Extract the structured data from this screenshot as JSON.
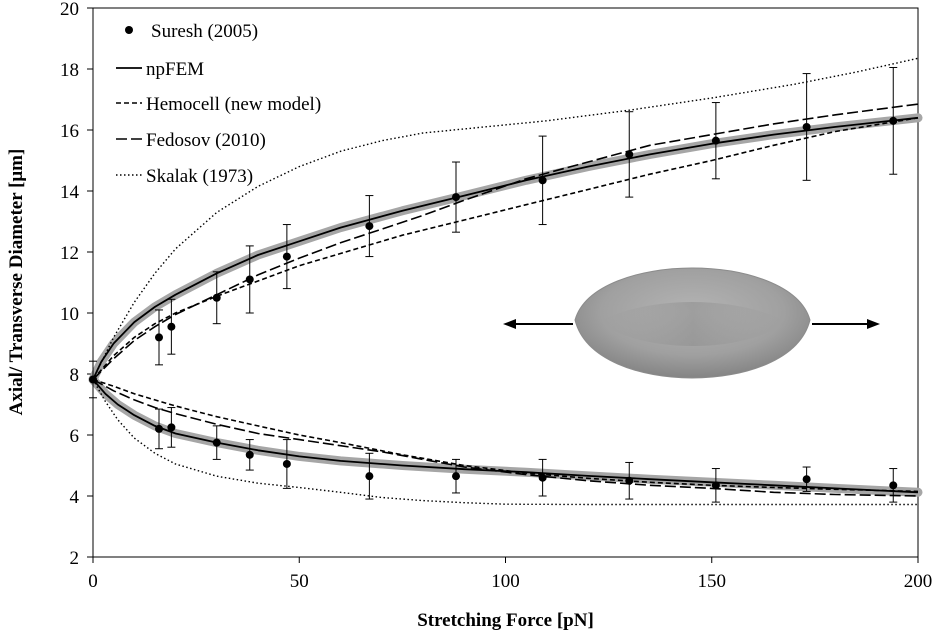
{
  "chart_data": {
    "type": "line",
    "xlabel": "Stretching Force [pN]",
    "ylabel": "Axial/ Transverse Diameter [μm]",
    "xlim": [
      0,
      200
    ],
    "ylim": [
      2,
      20
    ],
    "x_ticks": [
      "0",
      "50",
      "100",
      "150",
      "200"
    ],
    "y_ticks": [
      "2",
      "4",
      "6",
      "8",
      "10",
      "12",
      "14",
      "16",
      "18",
      "20"
    ],
    "grid": false,
    "legend_position": "top-left",
    "legend": [
      "Suresh (2005)",
      "npFEM",
      "Hemocell (new model)",
      "Fedosov (2010)",
      "Skalak (1973)"
    ],
    "series": [
      {
        "name": "Suresh (2005)",
        "style": "markers-with-error-bars",
        "color": "#000000",
        "axial": [
          {
            "x": 0,
            "y": 7.82,
            "err": 0.6
          },
          {
            "x": 16,
            "y": 9.2,
            "err": 0.9
          },
          {
            "x": 19,
            "y": 9.55,
            "err": 0.9
          },
          {
            "x": 30,
            "y": 10.5,
            "err": 0.85
          },
          {
            "x": 38,
            "y": 11.1,
            "err": 1.1
          },
          {
            "x": 47,
            "y": 11.85,
            "err": 1.05
          },
          {
            "x": 67,
            "y": 12.85,
            "err": 1.0
          },
          {
            "x": 88,
            "y": 13.8,
            "err": 1.15
          },
          {
            "x": 109,
            "y": 14.35,
            "err": 1.45
          },
          {
            "x": 130,
            "y": 15.2,
            "err": 1.4
          },
          {
            "x": 151,
            "y": 15.65,
            "err": 1.25
          },
          {
            "x": 173,
            "y": 16.1,
            "err": 1.75
          },
          {
            "x": 194,
            "y": 16.3,
            "err": 1.75
          }
        ],
        "transverse": [
          {
            "x": 16,
            "y": 6.2,
            "err": 0.65
          },
          {
            "x": 19,
            "y": 6.25,
            "err": 0.65
          },
          {
            "x": 30,
            "y": 5.75,
            "err": 0.55
          },
          {
            "x": 38,
            "y": 5.35,
            "err": 0.5
          },
          {
            "x": 47,
            "y": 5.05,
            "err": 0.8
          },
          {
            "x": 67,
            "y": 4.65,
            "err": 0.75
          },
          {
            "x": 88,
            "y": 4.65,
            "err": 0.55
          },
          {
            "x": 109,
            "y": 4.6,
            "err": 0.6
          },
          {
            "x": 130,
            "y": 4.5,
            "err": 0.6
          },
          {
            "x": 151,
            "y": 4.35,
            "err": 0.55
          },
          {
            "x": 173,
            "y": 4.55,
            "err": 0.4
          },
          {
            "x": 194,
            "y": 4.35,
            "err": 0.55
          }
        ]
      },
      {
        "name": "npFEM",
        "style": "solid",
        "color": "#000000",
        "band_color": "#a6a6a6",
        "axial": [
          [
            0,
            7.82
          ],
          [
            2,
            8.4
          ],
          [
            5,
            9.0
          ],
          [
            10,
            9.7
          ],
          [
            15,
            10.2
          ],
          [
            20,
            10.6
          ],
          [
            30,
            11.3
          ],
          [
            40,
            11.9
          ],
          [
            50,
            12.35
          ],
          [
            60,
            12.8
          ],
          [
            75,
            13.35
          ],
          [
            90,
            13.85
          ],
          [
            105,
            14.35
          ],
          [
            120,
            14.8
          ],
          [
            135,
            15.2
          ],
          [
            150,
            15.55
          ],
          [
            165,
            15.85
          ],
          [
            180,
            16.1
          ],
          [
            200,
            16.4
          ]
        ],
        "transverse": [
          [
            0,
            7.82
          ],
          [
            3,
            7.35
          ],
          [
            6,
            7.0
          ],
          [
            10,
            6.65
          ],
          [
            15,
            6.3
          ],
          [
            20,
            6.05
          ],
          [
            30,
            5.75
          ],
          [
            40,
            5.5
          ],
          [
            50,
            5.3
          ],
          [
            60,
            5.15
          ],
          [
            75,
            5.0
          ],
          [
            90,
            4.88
          ],
          [
            105,
            4.78
          ],
          [
            120,
            4.66
          ],
          [
            135,
            4.55
          ],
          [
            150,
            4.45
          ],
          [
            165,
            4.35
          ],
          [
            180,
            4.25
          ],
          [
            200,
            4.12
          ]
        ]
      },
      {
        "name": "Hemocell (new model)",
        "style": "short-dash",
        "color": "#000000",
        "axial": [
          [
            0,
            7.82
          ],
          [
            5,
            8.6
          ],
          [
            10,
            9.2
          ],
          [
            15,
            9.65
          ],
          [
            20,
            10.0
          ],
          [
            30,
            10.55
          ],
          [
            40,
            11.05
          ],
          [
            50,
            11.55
          ],
          [
            60,
            11.95
          ],
          [
            75,
            12.55
          ],
          [
            90,
            13.05
          ],
          [
            105,
            13.55
          ],
          [
            120,
            14.05
          ],
          [
            135,
            14.55
          ],
          [
            150,
            15.0
          ],
          [
            165,
            15.5
          ],
          [
            180,
            15.95
          ],
          [
            200,
            16.4
          ]
        ],
        "transverse": [
          [
            0,
            7.82
          ],
          [
            5,
            7.6
          ],
          [
            10,
            7.35
          ],
          [
            15,
            7.15
          ],
          [
            20,
            6.95
          ],
          [
            30,
            6.6
          ],
          [
            40,
            6.3
          ],
          [
            50,
            6.0
          ],
          [
            60,
            5.75
          ],
          [
            75,
            5.35
          ],
          [
            90,
            5.0
          ],
          [
            105,
            4.75
          ],
          [
            120,
            4.58
          ],
          [
            135,
            4.45
          ],
          [
            150,
            4.35
          ],
          [
            165,
            4.28
          ],
          [
            180,
            4.22
          ],
          [
            200,
            4.15
          ]
        ]
      },
      {
        "name": "Fedosov (2010)",
        "style": "long-dash",
        "color": "#000000",
        "axial": [
          [
            0,
            7.82
          ],
          [
            5,
            8.5
          ],
          [
            10,
            9.1
          ],
          [
            15,
            9.55
          ],
          [
            20,
            9.95
          ],
          [
            30,
            10.6
          ],
          [
            40,
            11.25
          ],
          [
            50,
            11.8
          ],
          [
            60,
            12.3
          ],
          [
            70,
            12.75
          ],
          [
            80,
            13.2
          ],
          [
            90,
            13.7
          ],
          [
            105,
            14.4
          ],
          [
            120,
            14.95
          ],
          [
            135,
            15.5
          ],
          [
            150,
            15.85
          ],
          [
            165,
            16.2
          ],
          [
            180,
            16.5
          ],
          [
            200,
            16.85
          ]
        ],
        "transverse": [
          [
            0,
            7.82
          ],
          [
            5,
            7.45
          ],
          [
            10,
            7.15
          ],
          [
            15,
            6.9
          ],
          [
            20,
            6.7
          ],
          [
            30,
            6.35
          ],
          [
            40,
            6.05
          ],
          [
            50,
            5.85
          ],
          [
            60,
            5.65
          ],
          [
            70,
            5.45
          ],
          [
            80,
            5.2
          ],
          [
            90,
            4.95
          ],
          [
            105,
            4.7
          ],
          [
            120,
            4.5
          ],
          [
            135,
            4.35
          ],
          [
            150,
            4.25
          ],
          [
            165,
            4.12
          ],
          [
            180,
            4.05
          ],
          [
            200,
            4.0
          ]
        ]
      },
      {
        "name": "Skalak (1973)",
        "style": "dotted",
        "color": "#000000",
        "axial": [
          [
            0,
            7.82
          ],
          [
            5,
            9.2
          ],
          [
            10,
            10.35
          ],
          [
            15,
            11.3
          ],
          [
            20,
            12.1
          ],
          [
            30,
            13.3
          ],
          [
            40,
            14.15
          ],
          [
            50,
            14.8
          ],
          [
            60,
            15.3
          ],
          [
            70,
            15.65
          ],
          [
            80,
            15.9
          ],
          [
            95,
            16.1
          ],
          [
            110,
            16.3
          ],
          [
            130,
            16.65
          ],
          [
            150,
            17.05
          ],
          [
            170,
            17.5
          ],
          [
            185,
            17.9
          ],
          [
            200,
            18.35
          ]
        ],
        "transverse": [
          [
            0,
            7.82
          ],
          [
            3,
            7.1
          ],
          [
            6,
            6.5
          ],
          [
            10,
            5.9
          ],
          [
            15,
            5.4
          ],
          [
            20,
            5.05
          ],
          [
            30,
            4.65
          ],
          [
            40,
            4.42
          ],
          [
            50,
            4.28
          ],
          [
            60,
            4.12
          ],
          [
            70,
            3.95
          ],
          [
            80,
            3.85
          ],
          [
            90,
            3.78
          ],
          [
            100,
            3.73
          ],
          [
            120,
            3.72
          ],
          [
            150,
            3.72
          ],
          [
            200,
            3.72
          ]
        ]
      }
    ]
  }
}
